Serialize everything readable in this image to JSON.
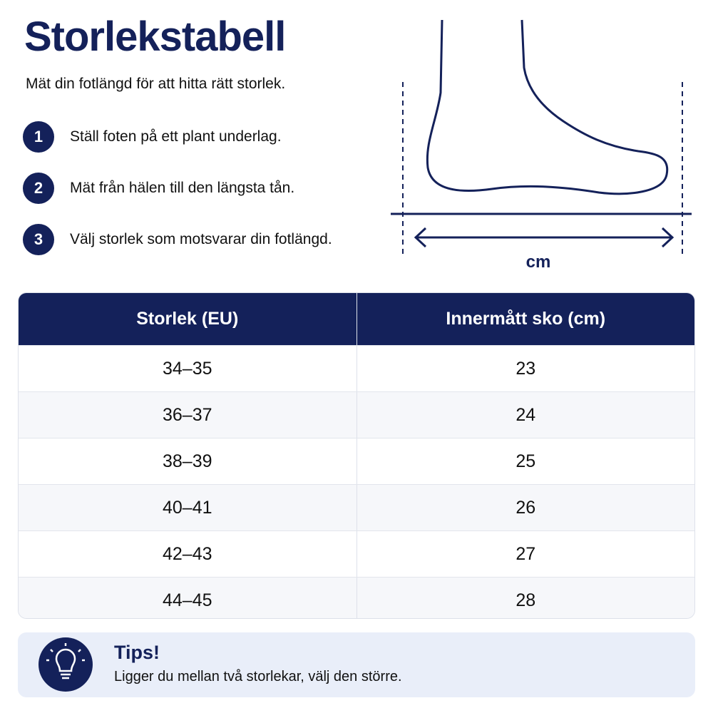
{
  "header": {
    "title": "Storlekstabell",
    "subtitle": "Mät din fotlängd för att hitta rätt storlek."
  },
  "steps": [
    {
      "number": "1",
      "text": "Ställ foten på ett plant underlag."
    },
    {
      "number": "2",
      "text": "Mät från hälen till den längsta tån."
    },
    {
      "number": "3",
      "text": "Välj storlek som motsvarar din fotlängd."
    }
  ],
  "diagram": {
    "label": "cm"
  },
  "table": {
    "headers": [
      "Storlek (EU)",
      "Innermått sko (cm)"
    ],
    "rows": [
      [
        "34–35",
        "23"
      ],
      [
        "36–37",
        "24"
      ],
      [
        "38–39",
        "25"
      ],
      [
        "40–41",
        "26"
      ],
      [
        "42–43",
        "27"
      ],
      [
        "44–45",
        "28"
      ]
    ]
  },
  "tips": {
    "title": "Tips!",
    "text": "Ligger du mellan två storlekar, välj den större."
  }
}
